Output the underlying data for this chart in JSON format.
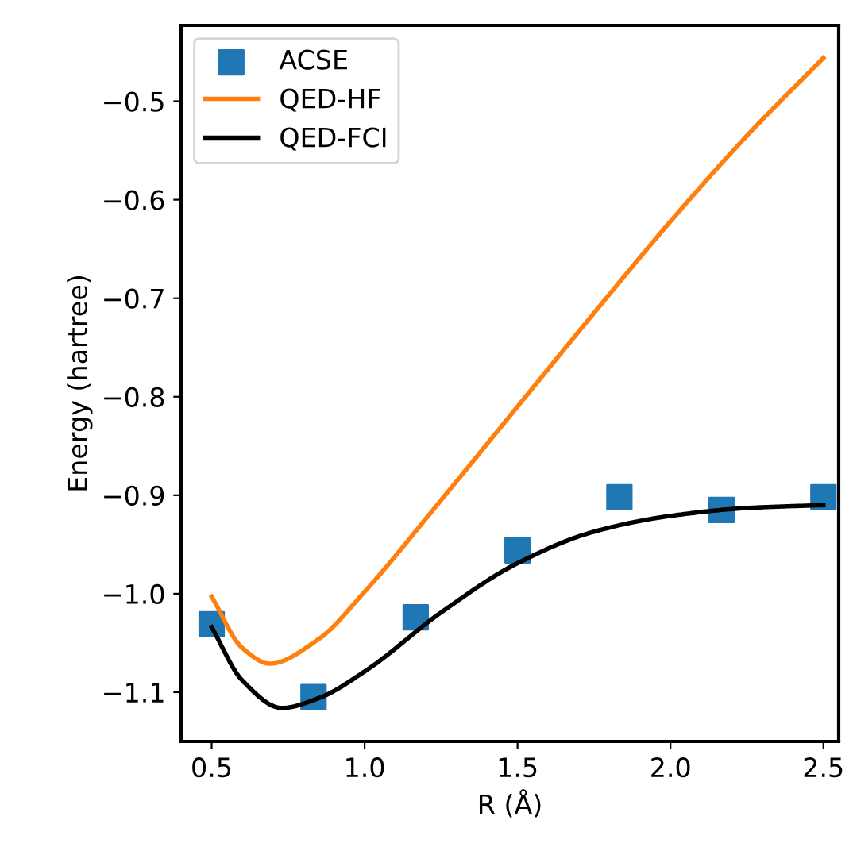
{
  "chart_data": {
    "type": "line",
    "xlabel": "R (Å)",
    "ylabel": "Energy (hartree)",
    "xlim": [
      0.4,
      2.55
    ],
    "ylim": [
      -1.15,
      -0.423
    ],
    "xticks": [
      0.5,
      {
        "value": 1,
        "label": "1.0"
      },
      1.5,
      {
        "value": 2,
        "label": "2.0"
      },
      2.5
    ],
    "yticks": [
      -1.1,
      {
        "value": -1,
        "label": "−1.0"
      },
      -0.9,
      -0.8,
      -0.7,
      -0.6,
      -0.5
    ],
    "legend": "top left",
    "series": [
      {
        "name": "ACSE",
        "type": "scatter",
        "marker": "square",
        "color": "#1f77b4",
        "x": [
          0.5,
          0.833,
          1.167,
          1.5,
          1.833,
          2.167,
          2.5
        ],
        "values": [
          -1.031,
          -1.105,
          -1.024,
          -0.956,
          -0.902,
          -0.915,
          -0.902
        ]
      },
      {
        "name": "QED-HF",
        "color": "#ff7f0e",
        "x": [
          0.5,
          0.6,
          0.69,
          0.85,
          1.0,
          1.25,
          1.5,
          1.75,
          2.0,
          2.25,
          2.5
        ],
        "values": [
          -1.003,
          -1.055,
          -1.071,
          -1.046,
          -0.998,
          -0.905,
          -0.81,
          -0.715,
          -0.622,
          -0.535,
          -0.456
        ]
      },
      {
        "name": "QED-FCI",
        "color": "#000000",
        "x": [
          0.5,
          0.6,
          0.73,
          0.85,
          1.0,
          1.25,
          1.5,
          1.75,
          2.0,
          2.25,
          2.5
        ],
        "values": [
          -1.034,
          -1.088,
          -1.116,
          -1.106,
          -1.079,
          -1.019,
          -0.969,
          -0.937,
          -0.921,
          -0.913,
          -0.91
        ]
      }
    ]
  }
}
